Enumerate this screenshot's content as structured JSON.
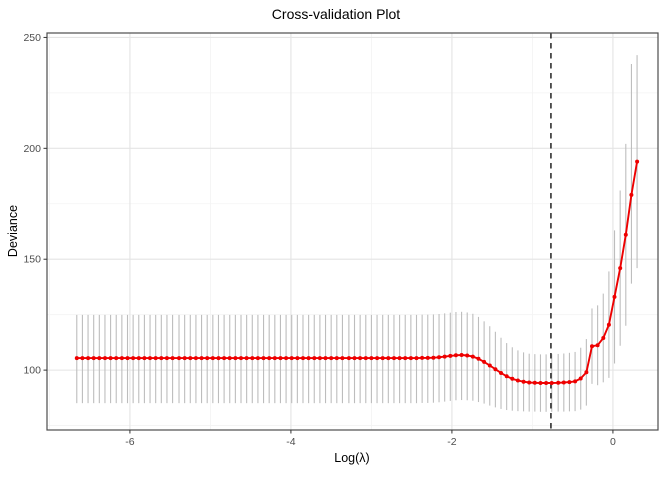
{
  "chart_data": {
    "type": "line",
    "title": "Cross-validation Plot",
    "xlabel": "Log(λ)",
    "ylabel": "Deviance",
    "xlim": [
      -7.03,
      0.56
    ],
    "ylim": [
      73,
      252
    ],
    "x_major_ticks": [
      -6,
      -4,
      -2,
      0
    ],
    "x_minor_gridlines": [
      -7,
      -5,
      -3,
      -1
    ],
    "y_major_ticks": [
      100,
      150,
      200,
      250
    ],
    "y_minor_gridlines": [
      75,
      125,
      175,
      225
    ],
    "grid": true,
    "legend_position": "none",
    "vline": {
      "x": -0.77,
      "style": "dashed",
      "color": "#111111"
    },
    "colors": {
      "curve": "#EE0000",
      "error_bar": "#BDBDBD",
      "grid_major": "#E4E4E4",
      "grid_minor": "#F3F3F3",
      "panel_border": "#4D4D4D",
      "tick_label": "#4D4D4D",
      "tick_mark": "#333333"
    },
    "points_format": [
      "log_lambda",
      "deviance",
      "lower",
      "upper"
    ],
    "series": [
      {
        "name": "cv-deviance",
        "points": [
          [
            -6.66,
            105.4,
            85.1,
            124.9
          ],
          [
            -6.59,
            105.4,
            85.1,
            124.9
          ],
          [
            -6.52,
            105.4,
            85.1,
            124.9
          ],
          [
            -6.45,
            105.4,
            85.1,
            124.9
          ],
          [
            -6.38,
            105.4,
            85.1,
            124.9
          ],
          [
            -6.31,
            105.4,
            85.1,
            124.9
          ],
          [
            -6.24,
            105.4,
            85.1,
            124.9
          ],
          [
            -6.17,
            105.4,
            85.1,
            124.9
          ],
          [
            -6.1,
            105.4,
            85.1,
            124.9
          ],
          [
            -6.03,
            105.4,
            85.1,
            124.9
          ],
          [
            -5.96,
            105.4,
            85.1,
            124.9
          ],
          [
            -5.89,
            105.4,
            85.1,
            124.9
          ],
          [
            -5.82,
            105.4,
            85.1,
            124.9
          ],
          [
            -5.75,
            105.4,
            85.1,
            124.9
          ],
          [
            -5.68,
            105.4,
            85.1,
            124.9
          ],
          [
            -5.61,
            105.4,
            85.1,
            124.9
          ],
          [
            -5.54,
            105.4,
            85.1,
            124.9
          ],
          [
            -5.47,
            105.4,
            85.1,
            124.9
          ],
          [
            -5.39,
            105.4,
            85.1,
            124.9
          ],
          [
            -5.32,
            105.4,
            85.1,
            124.9
          ],
          [
            -5.25,
            105.4,
            85.1,
            124.9
          ],
          [
            -5.18,
            105.4,
            85.1,
            124.9
          ],
          [
            -5.11,
            105.4,
            85.1,
            124.9
          ],
          [
            -5.04,
            105.4,
            85.1,
            124.9
          ],
          [
            -4.97,
            105.4,
            85.1,
            124.9
          ],
          [
            -4.9,
            105.4,
            85.1,
            124.9
          ],
          [
            -4.83,
            105.4,
            85.1,
            124.9
          ],
          [
            -4.76,
            105.4,
            85.1,
            124.9
          ],
          [
            -4.69,
            105.4,
            85.1,
            124.9
          ],
          [
            -4.62,
            105.4,
            85.1,
            124.9
          ],
          [
            -4.55,
            105.4,
            85.1,
            124.9
          ],
          [
            -4.48,
            105.4,
            85.1,
            124.9
          ],
          [
            -4.41,
            105.4,
            85.1,
            124.9
          ],
          [
            -4.34,
            105.4,
            85.1,
            124.9
          ],
          [
            -4.27,
            105.4,
            85.1,
            124.9
          ],
          [
            -4.2,
            105.4,
            85.1,
            124.9
          ],
          [
            -4.13,
            105.4,
            85.1,
            124.9
          ],
          [
            -4.06,
            105.4,
            85.1,
            124.9
          ],
          [
            -3.99,
            105.4,
            85.1,
            124.9
          ],
          [
            -3.92,
            105.4,
            85.1,
            124.9
          ],
          [
            -3.85,
            105.4,
            85.1,
            124.9
          ],
          [
            -3.78,
            105.4,
            85.1,
            124.9
          ],
          [
            -3.71,
            105.4,
            85.1,
            124.9
          ],
          [
            -3.64,
            105.4,
            85.1,
            124.9
          ],
          [
            -3.57,
            105.4,
            85.1,
            124.9
          ],
          [
            -3.5,
            105.4,
            85.1,
            124.9
          ],
          [
            -3.43,
            105.4,
            85.1,
            124.9
          ],
          [
            -3.36,
            105.4,
            85.1,
            124.9
          ],
          [
            -3.28,
            105.4,
            85.1,
            124.9
          ],
          [
            -3.21,
            105.4,
            85.1,
            124.9
          ],
          [
            -3.14,
            105.4,
            85.1,
            124.9
          ],
          [
            -3.07,
            105.4,
            85.1,
            124.9
          ],
          [
            -3.0,
            105.4,
            85.1,
            124.9
          ],
          [
            -2.93,
            105.4,
            85.1,
            124.9
          ],
          [
            -2.86,
            105.4,
            85.1,
            124.9
          ],
          [
            -2.79,
            105.4,
            85.1,
            124.9
          ],
          [
            -2.72,
            105.4,
            85.1,
            124.9
          ],
          [
            -2.65,
            105.4,
            85.1,
            124.9
          ],
          [
            -2.58,
            105.4,
            85.1,
            124.9
          ],
          [
            -2.51,
            105.4,
            85.1,
            124.9
          ],
          [
            -2.44,
            105.4,
            85.1,
            124.9
          ],
          [
            -2.37,
            105.5,
            85.2,
            125.0
          ],
          [
            -2.3,
            105.5,
            85.2,
            125.0
          ],
          [
            -2.23,
            105.6,
            85.3,
            125.1
          ],
          [
            -2.16,
            105.8,
            85.5,
            125.3
          ],
          [
            -2.09,
            106.1,
            85.8,
            125.6
          ],
          [
            -2.02,
            106.4,
            86.1,
            125.9
          ],
          [
            -1.95,
            106.7,
            86.4,
            126.2
          ],
          [
            -1.88,
            106.8,
            86.5,
            126.3
          ],
          [
            -1.81,
            106.6,
            86.4,
            126.0
          ],
          [
            -1.74,
            106.1,
            86.2,
            125.4
          ],
          [
            -1.67,
            105.1,
            85.6,
            124.0
          ],
          [
            -1.6,
            103.7,
            84.9,
            122.0
          ],
          [
            -1.53,
            102.1,
            84.0,
            119.8
          ],
          [
            -1.46,
            100.4,
            83.2,
            117.3
          ],
          [
            -1.39,
            98.7,
            82.5,
            114.6
          ],
          [
            -1.32,
            97.2,
            82.0,
            112.2
          ],
          [
            -1.25,
            96.1,
            81.7,
            110.3
          ],
          [
            -1.18,
            95.3,
            81.5,
            108.9
          ],
          [
            -1.11,
            94.8,
            81.4,
            108.0
          ],
          [
            -1.04,
            94.4,
            81.3,
            107.4
          ],
          [
            -0.97,
            94.3,
            81.3,
            107.2
          ],
          [
            -0.9,
            94.2,
            81.2,
            107.1
          ],
          [
            -0.83,
            94.2,
            81.2,
            107.1
          ],
          [
            -0.76,
            94.2,
            81.2,
            107.2
          ],
          [
            -0.68,
            94.3,
            81.3,
            107.3
          ],
          [
            -0.61,
            94.4,
            81.3,
            107.5
          ],
          [
            -0.54,
            94.6,
            81.4,
            107.8
          ],
          [
            -0.47,
            94.9,
            81.5,
            108.2
          ],
          [
            -0.4,
            96.2,
            82.2,
            110.1
          ],
          [
            -0.33,
            99.0,
            84.0,
            114.0
          ],
          [
            -0.26,
            110.8,
            93.8,
            127.8
          ],
          [
            -0.19,
            111.2,
            93.2,
            129.2
          ],
          [
            -0.12,
            114.5,
            94.5,
            134.5
          ],
          [
            -0.05,
            120.5,
            96.5,
            144.5
          ],
          [
            0.02,
            133.0,
            103.0,
            163.0
          ],
          [
            0.09,
            146.0,
            111.0,
            181.0
          ],
          [
            0.16,
            161.0,
            120.0,
            202.0
          ],
          [
            0.23,
            179.0,
            139.0,
            238.0
          ],
          [
            0.3,
            194.0,
            146.0,
            242.0
          ]
        ]
      }
    ]
  }
}
